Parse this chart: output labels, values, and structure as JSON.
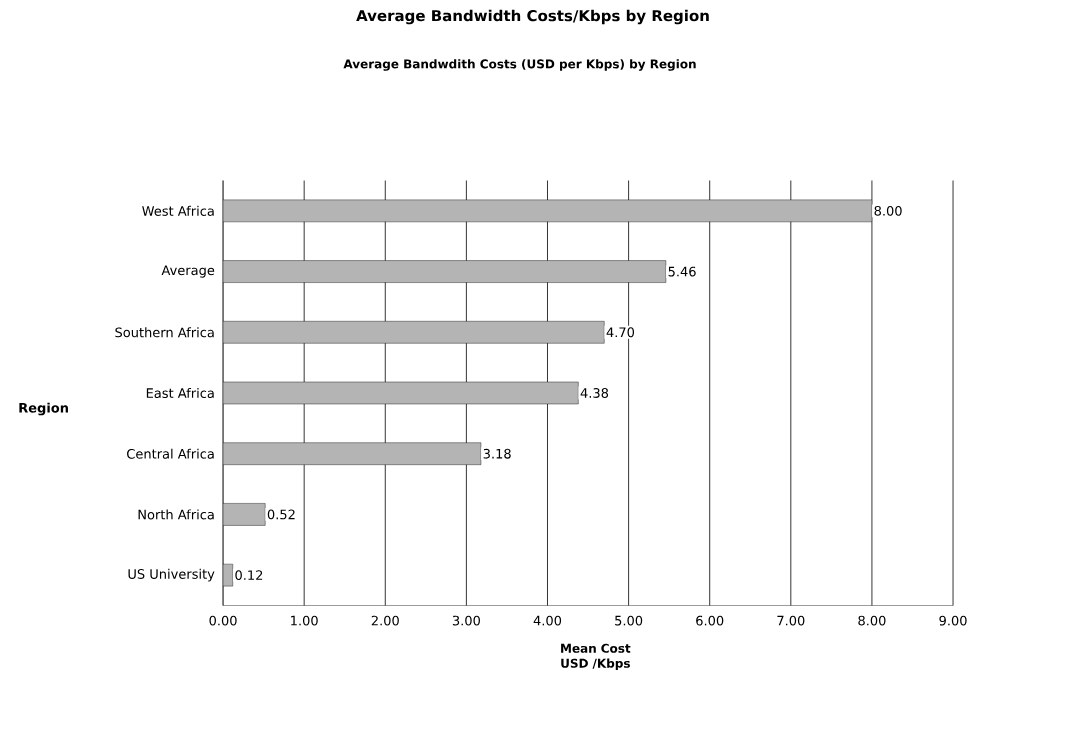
{
  "chart_data": {
    "type": "bar",
    "orientation": "horizontal",
    "title": "Average Bandwidth Costs/Kbps by Region",
    "subtitle": "Average Bandwdith Costs (USD per Kbps) by Region",
    "ylabel": "Region",
    "xlabel": "Mean Cost USD /Kbps",
    "categories": [
      "West Africa",
      "Average",
      "Southern Africa",
      "East Africa",
      "Central Africa",
      "North Africa",
      "US University"
    ],
    "values": [
      8.0,
      5.46,
      4.7,
      4.38,
      3.18,
      0.52,
      0.12
    ],
    "value_labels": [
      "8.00",
      "5.46",
      "4.70",
      "4.38",
      "3.18",
      "0.52",
      "0.12"
    ],
    "color": "#b4b4b4",
    "grid": "x",
    "xlim": [
      0,
      9
    ],
    "xticks": [
      {
        "value": 0,
        "label": "0.00"
      },
      {
        "value": 1,
        "label": "1.00"
      },
      {
        "value": 2,
        "label": "2.00"
      },
      {
        "value": 3,
        "label": "3.00"
      },
      {
        "value": 4,
        "label": "4.00"
      },
      {
        "value": 5,
        "label": "5.00"
      },
      {
        "value": 6,
        "label": "6.00"
      },
      {
        "value": 7,
        "label": "7.00"
      },
      {
        "value": 8,
        "label": "8.00"
      },
      {
        "value": 9,
        "label": "9.00"
      }
    ]
  }
}
